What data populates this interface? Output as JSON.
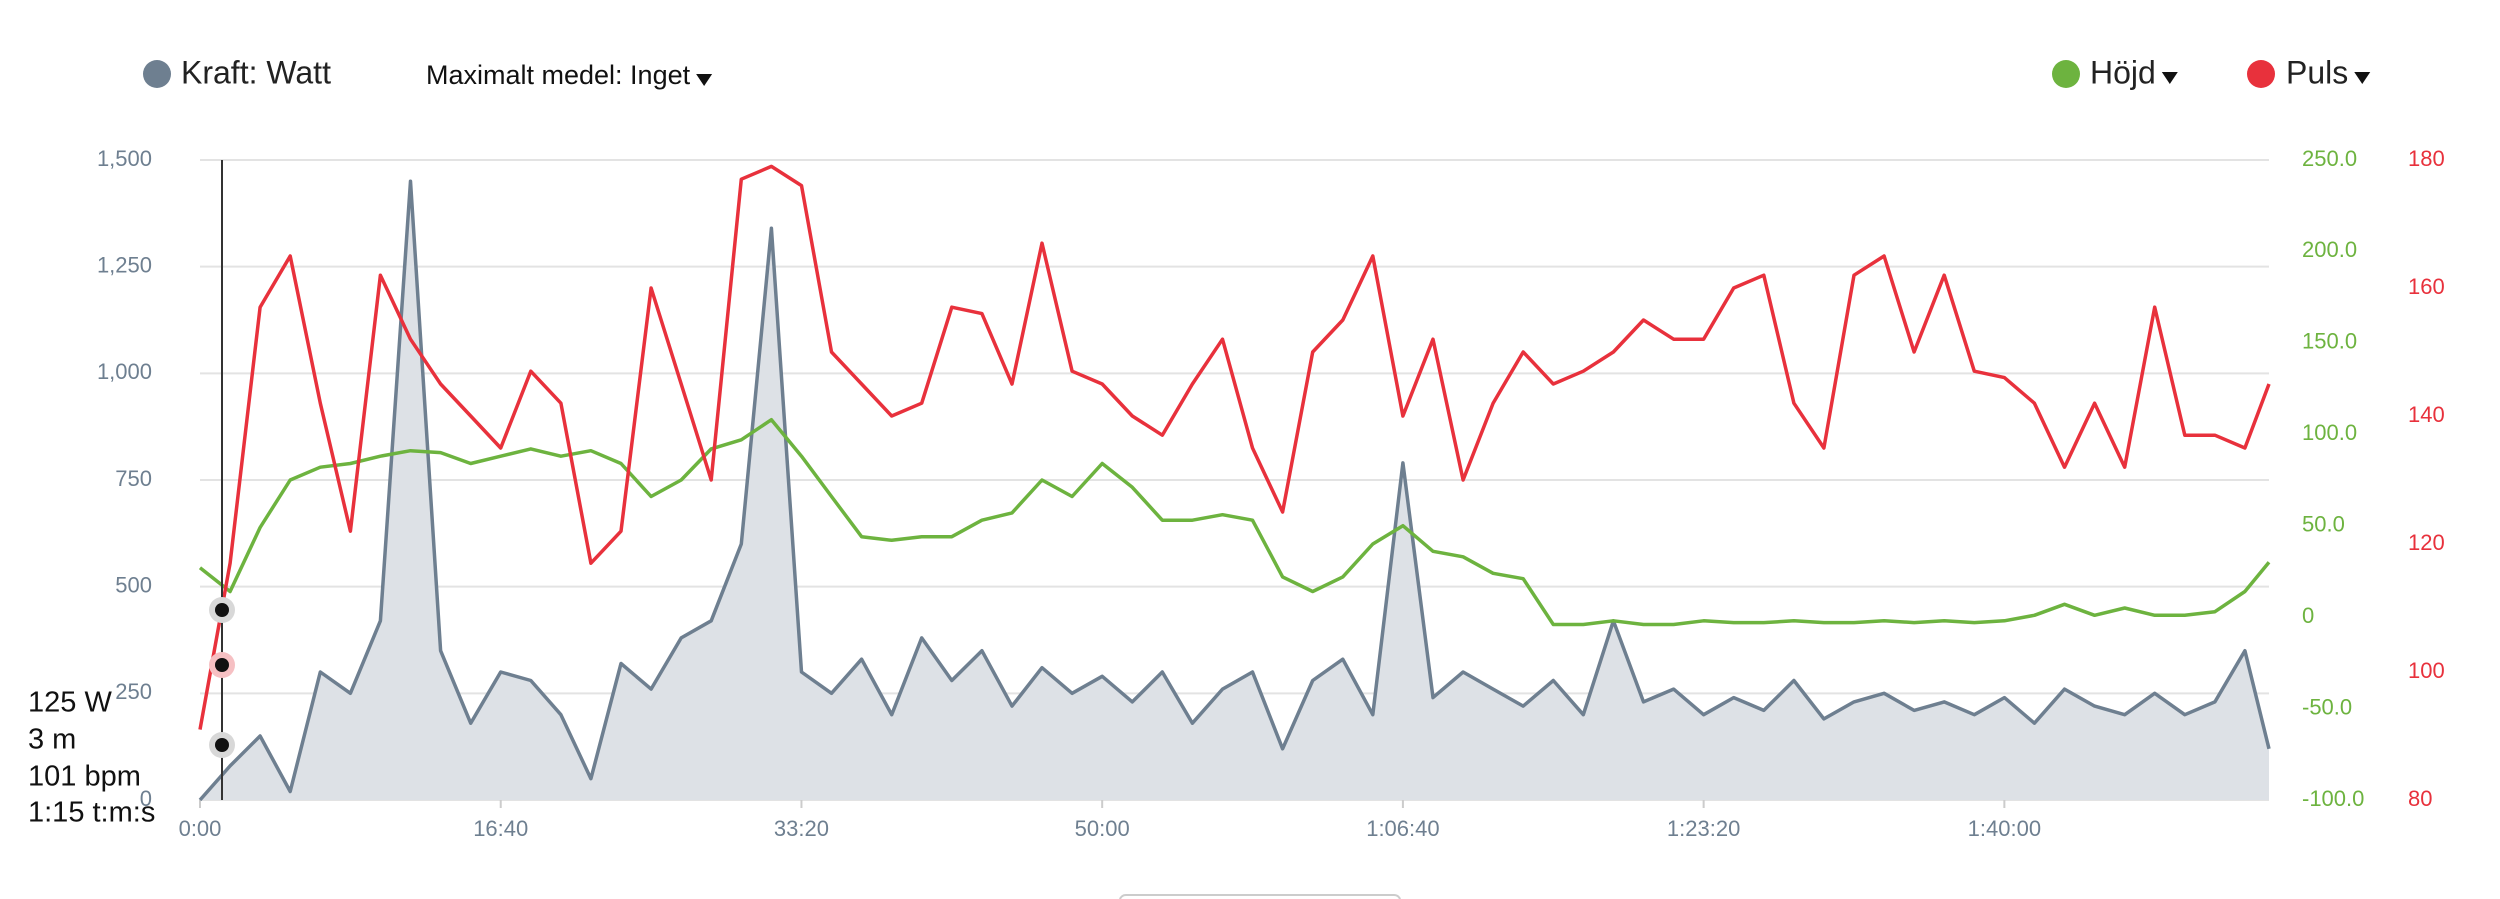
{
  "chart_data": {
    "type": "line",
    "x": [
      0,
      100,
      200,
      300,
      400,
      500,
      600,
      700,
      800,
      900,
      1000,
      1100,
      1200,
      1300,
      1400,
      1500,
      1600,
      1700,
      1800,
      1900,
      2000,
      2100,
      2200,
      2300,
      2400,
      2500,
      2600,
      2700,
      2800,
      2900,
      3000,
      3100,
      3200,
      3300,
      3400,
      3500,
      3600,
      3700,
      3800,
      3900,
      4000,
      4100,
      4200,
      4300,
      4400,
      4500,
      4600,
      4700,
      4800,
      4900,
      5000,
      5100,
      5200,
      5300,
      5400,
      5500,
      5600,
      5700,
      5800,
      5900,
      6000,
      6100,
      6200,
      6300,
      6400,
      6500,
      6600,
      6700,
      6800,
      6880
    ],
    "xlim": [
      0,
      6880
    ],
    "xticks": [
      {
        "value": 0,
        "label": "0:00"
      },
      {
        "value": 1000,
        "label": "16:40"
      },
      {
        "value": 2000,
        "label": "33:20"
      },
      {
        "value": 3000,
        "label": "50:00"
      },
      {
        "value": 4000,
        "label": "1:06:40"
      },
      {
        "value": 5000,
        "label": "1:23:20"
      },
      {
        "value": 6000,
        "label": "1:40:00"
      }
    ],
    "ylim": [
      0,
      1500
    ],
    "yticks": [
      0,
      {
        "value": 250,
        "label": "250"
      },
      500,
      750,
      {
        "value": 1000,
        "label": "1,000"
      },
      {
        "value": 1250,
        "label": "1,250"
      },
      {
        "value": 1500,
        "label": "1,500"
      }
    ],
    "y2lim": [
      -100,
      250
    ],
    "y2ticks": [
      {
        "value": -100,
        "label": "-100.0"
      },
      {
        "value": -50,
        "label": "-50.0"
      },
      0,
      {
        "value": 50,
        "label": "50.0"
      },
      {
        "value": 100,
        "label": "100.0"
      },
      {
        "value": 150,
        "label": "150.0"
      },
      {
        "value": 200,
        "label": "200.0"
      },
      {
        "value": 250,
        "label": "250.0"
      }
    ],
    "y3lim": [
      80,
      180
    ],
    "y3ticks": [
      80,
      100,
      120,
      140,
      160,
      180
    ],
    "grid": true,
    "average_selector": "Maximalt medel: Inget",
    "series": [
      {
        "name": "Kraft: Watt",
        "color": "#6e7f90",
        "axis": "y",
        "area": true,
        "values": [
          0,
          80,
          150,
          20,
          300,
          250,
          420,
          1450,
          350,
          180,
          300,
          280,
          200,
          50,
          320,
          260,
          380,
          420,
          600,
          1340,
          300,
          250,
          330,
          200,
          380,
          280,
          350,
          220,
          310,
          250,
          290,
          230,
          300,
          180,
          260,
          300,
          120,
          280,
          330,
          200,
          790,
          240,
          300,
          260,
          220,
          280,
          200,
          420,
          230,
          260,
          200,
          240,
          210,
          280,
          190,
          230,
          250,
          210,
          230,
          200,
          240,
          180,
          260,
          220,
          200,
          250,
          200,
          230,
          350,
          120
        ]
      },
      {
        "name": "Höjd",
        "color": "#6db33f",
        "axis": "y2",
        "values": [
          27,
          14,
          49,
          75,
          82,
          84,
          88,
          91,
          90,
          84,
          88,
          92,
          88,
          91,
          84,
          66,
          75,
          92,
          97,
          108,
          88,
          66,
          44,
          42,
          44,
          44,
          53,
          57,
          75,
          66,
          84,
          71,
          53,
          53,
          56,
          53,
          22,
          14,
          22,
          40,
          50,
          36,
          33,
          24,
          21,
          -4,
          -4,
          -2,
          -4,
          -4,
          -2,
          -3,
          -3,
          -2,
          -3,
          -3,
          -2,
          -3,
          -2,
          -3,
          -2,
          1,
          7,
          1,
          5,
          1,
          1,
          3,
          14,
          30
        ]
      },
      {
        "name": "Puls",
        "color": "#e8313c",
        "axis": "y3",
        "values": [
          91,
          117,
          157,
          165,
          142,
          122,
          162,
          152,
          145,
          140,
          135,
          147,
          142,
          117,
          122,
          160,
          145,
          130,
          177,
          179,
          176,
          150,
          145,
          140,
          142,
          157,
          156,
          145,
          167,
          147,
          145,
          140,
          137,
          145,
          152,
          135,
          125,
          150,
          155,
          165,
          140,
          152,
          130,
          142,
          150,
          145,
          147,
          150,
          155,
          152,
          152,
          160,
          162,
          142,
          135,
          162,
          165,
          150,
          162,
          147,
          146,
          142,
          132,
          142,
          132,
          157,
          137,
          137,
          135,
          145
        ]
      }
    ],
    "tooltip": {
      "lines": [
        "125 W",
        "3 m",
        "101 bpm",
        "1:15 t:m:s"
      ]
    }
  }
}
